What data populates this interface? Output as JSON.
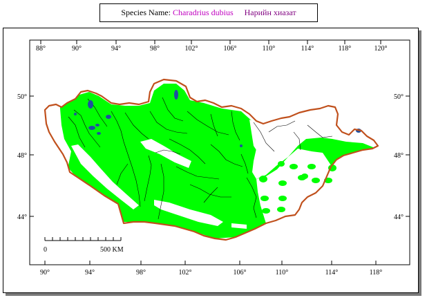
{
  "title": {
    "label": "Species Name:",
    "scientific_name": "Charadrius dubius",
    "local_name": "Нарийн хиазат"
  },
  "top_longitudes": [
    "88°",
    "90°",
    "94°",
    "98°",
    "102°",
    "106°",
    "110°",
    "114°",
    "118°",
    "120°"
  ],
  "bottom_longitudes": [
    "90°",
    "94°",
    "98°",
    "102°",
    "106°",
    "110°",
    "114°",
    "118°"
  ],
  "left_latitudes": [
    "50°",
    "48°",
    "44°"
  ],
  "right_latitudes": [
    "50°",
    "48°",
    "44°"
  ],
  "scale_bar": {
    "start": "0",
    "end": "500 KM"
  },
  "colors": {
    "range": "#00ff00",
    "border": "#c0501c",
    "lakes": "#1f4fa0",
    "rivers": "#000000",
    "frame_shadow": "#7a7a7a"
  }
}
